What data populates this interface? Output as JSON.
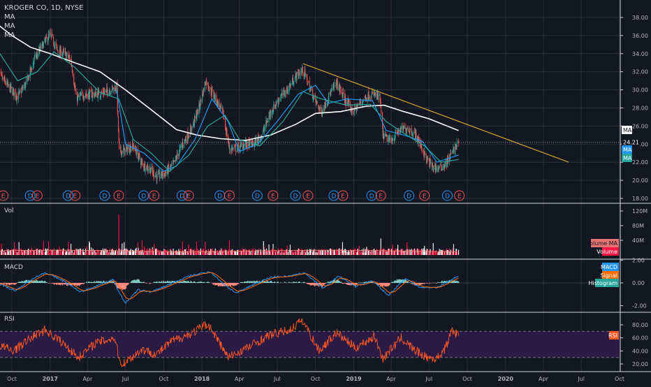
{
  "window": {
    "symbol": "KROGER CO, 1D, NYSE",
    "indicators": [
      "MA",
      "MA",
      "MA"
    ]
  },
  "colors": {
    "background": "#131722",
    "grid": "#2a2e39",
    "up_candle": "#26a69a",
    "down_candle": "#ef5350",
    "ma_white": "#ffffff",
    "ma_blue": "#2196f3",
    "ma_teal": "#26a69a",
    "trendline": "#c9a227",
    "volume_up": "#ffffff",
    "volume_down": "#ff1744",
    "macd": "#2196f3",
    "signal": "#ff6d00",
    "histogram_up": "#80cbc4",
    "histogram_down": "#ff8a80",
    "rsi": "#ff5722",
    "rsi_band": "#2a1a44",
    "earnings_red": "#ef5350",
    "dividend_blue": "#2196f3"
  },
  "chart_data": [
    {
      "type": "candlestick",
      "title": "KROGER CO, 1D, NYSE",
      "series_labels": [
        "MA",
        "MA",
        "MA"
      ],
      "x_tick_labels": [
        "Oct",
        "2017",
        "Apr",
        "Jul",
        "Oct",
        "2018",
        "Apr",
        "Jul",
        "Oct",
        "2019",
        "Apr",
        "Jul",
        "Oct",
        "2020",
        "Apr",
        "Jul",
        "Oct"
      ],
      "y_tick_labels": [
        "18.00",
        "20.00",
        "22.00",
        "24.00",
        "26.00",
        "28.00",
        "30.00",
        "32.00",
        "34.00",
        "36.00",
        "38.00"
      ],
      "ylim": [
        17.2,
        39.4
      ],
      "close_path": [
        [
          "2016-08-26",
          32.0
        ],
        [
          "2016-09-20",
          30.5
        ],
        [
          "2016-10-15",
          29.2
        ],
        [
          "2016-11-05",
          30.8
        ],
        [
          "2016-11-25",
          33.5
        ],
        [
          "2016-12-15",
          35.0
        ],
        [
          "2017-01-01",
          36.1
        ],
        [
          "2017-01-20",
          34.2
        ],
        [
          "2017-02-05",
          34.0
        ],
        [
          "2017-02-20",
          33.3
        ],
        [
          "2017-03-05",
          29.0
        ],
        [
          "2017-03-25",
          29.5
        ],
        [
          "2017-04-20",
          29.5
        ],
        [
          "2017-05-15",
          29.8
        ],
        [
          "2017-06-10",
          30.3
        ],
        [
          "2017-06-16",
          23.2
        ],
        [
          "2017-07-01",
          23.3
        ],
        [
          "2017-07-20",
          23.8
        ],
        [
          "2017-08-10",
          21.8
        ],
        [
          "2017-08-30",
          21.2
        ],
        [
          "2017-09-15",
          20.4
        ],
        [
          "2017-10-05",
          20.8
        ],
        [
          "2017-10-25",
          21.8
        ],
        [
          "2017-11-15",
          24.0
        ],
        [
          "2017-12-05",
          25.5
        ],
        [
          "2017-12-25",
          28.0
        ],
        [
          "2018-01-10",
          31.0
        ],
        [
          "2018-01-30",
          29.3
        ],
        [
          "2018-02-20",
          27.5
        ],
        [
          "2018-03-08",
          23.5
        ],
        [
          "2018-03-25",
          23.5
        ],
        [
          "2018-04-15",
          24.0
        ],
        [
          "2018-05-05",
          24.0
        ],
        [
          "2018-05-25",
          25.0
        ],
        [
          "2018-06-15",
          27.5
        ],
        [
          "2018-07-05",
          29.0
        ],
        [
          "2018-07-25",
          30.0
        ],
        [
          "2018-08-15",
          31.5
        ],
        [
          "2018-09-01",
          32.2
        ],
        [
          "2018-09-15",
          30.5
        ],
        [
          "2018-09-28",
          29.0
        ],
        [
          "2018-10-15",
          27.5
        ],
        [
          "2018-11-01",
          29.2
        ],
        [
          "2018-11-20",
          30.8
        ],
        [
          "2018-12-10",
          29.0
        ],
        [
          "2018-12-30",
          27.5
        ],
        [
          "2019-01-15",
          28.5
        ],
        [
          "2019-02-01",
          29.3
        ],
        [
          "2019-02-20",
          29.5
        ],
        [
          "2019-03-05",
          29.0
        ],
        [
          "2019-03-12",
          25.0
        ],
        [
          "2019-03-30",
          24.3
        ],
        [
          "2019-04-20",
          25.5
        ],
        [
          "2019-05-10",
          25.8
        ],
        [
          "2019-05-30",
          25.0
        ],
        [
          "2019-06-10",
          24.0
        ],
        [
          "2019-06-25",
          22.3
        ],
        [
          "2019-07-10",
          21.5
        ],
        [
          "2019-07-25",
          21.3
        ],
        [
          "2019-08-10",
          21.8
        ],
        [
          "2019-08-25",
          23.0
        ],
        [
          "2019-09-10",
          24.21
        ]
      ],
      "moving_averages": [
        {
          "name": "MA",
          "color": "#ffffff",
          "points": [
            [
              "2016-08-26",
              37.3
            ],
            [
              "2016-10-01",
              36.0
            ],
            [
              "2016-11-15",
              34.7
            ],
            [
              "2017-01-01",
              34.0
            ],
            [
              "2017-03-01",
              33.0
            ],
            [
              "2017-05-01",
              32.0
            ],
            [
              "2017-07-01",
              30.0
            ],
            [
              "2017-09-01",
              27.8
            ],
            [
              "2017-11-01",
              25.6
            ],
            [
              "2017-12-20",
              25.0
            ],
            [
              "2018-02-15",
              24.6
            ],
            [
              "2018-04-15",
              24.4
            ],
            [
              "2018-06-15",
              25.0
            ],
            [
              "2018-08-15",
              26.2
            ],
            [
              "2018-10-01",
              27.4
            ],
            [
              "2018-12-01",
              27.6
            ],
            [
              "2019-02-01",
              28.2
            ],
            [
              "2019-03-15",
              28.3
            ],
            [
              "2019-05-01",
              27.6
            ],
            [
              "2019-07-01",
              26.8
            ],
            [
              "2019-09-10",
              25.5
            ]
          ]
        },
        {
          "name": "MA",
          "color": "#2196f3",
          "points": [
            [
              "2017-06-10",
              30.0
            ],
            [
              "2017-07-01",
              24.0
            ],
            [
              "2017-08-15",
              23.0
            ],
            [
              "2017-10-01",
              21.0
            ],
            [
              "2017-11-01",
              21.6
            ],
            [
              "2017-12-15",
              24.5
            ],
            [
              "2018-01-25",
              29.0
            ],
            [
              "2018-03-05",
              26.5
            ],
            [
              "2018-04-01",
              23.2
            ],
            [
              "2018-05-15",
              24.0
            ],
            [
              "2018-07-01",
              26.5
            ],
            [
              "2018-08-20",
              29.5
            ],
            [
              "2018-10-01",
              30.5
            ],
            [
              "2018-11-01",
              28.5
            ],
            [
              "2018-12-15",
              29.0
            ],
            [
              "2019-02-15",
              28.8
            ],
            [
              "2019-03-20",
              25.5
            ],
            [
              "2019-05-01",
              25.0
            ],
            [
              "2019-06-15",
              24.3
            ],
            [
              "2019-07-20",
              22.0
            ],
            [
              "2019-09-10",
              22.8
            ]
          ]
        },
        {
          "name": "MA",
          "color": "#26a69a",
          "points": [
            [
              "2016-08-26",
              34.5
            ],
            [
              "2016-10-15",
              31.0
            ],
            [
              "2016-12-01",
              32.0
            ],
            [
              "2017-01-10",
              34.2
            ],
            [
              "2017-03-01",
              32.5
            ],
            [
              "2017-05-01",
              29.7
            ],
            [
              "2017-06-15",
              29.0
            ],
            [
              "2017-07-20",
              24.5
            ],
            [
              "2017-09-01",
              23.0
            ],
            [
              "2017-10-15",
              21.0
            ],
            [
              "2017-12-01",
              22.8
            ],
            [
              "2018-01-15",
              26.0
            ],
            [
              "2018-02-25",
              27.2
            ],
            [
              "2018-04-01",
              24.5
            ],
            [
              "2018-05-20",
              23.8
            ],
            [
              "2018-07-15",
              26.5
            ],
            [
              "2018-09-01",
              29.8
            ],
            [
              "2018-10-15",
              29.0
            ],
            [
              "2018-12-15",
              28.3
            ],
            [
              "2019-02-10",
              28.4
            ],
            [
              "2019-03-20",
              26.5
            ],
            [
              "2019-05-01",
              25.2
            ],
            [
              "2019-06-20",
              23.8
            ],
            [
              "2019-07-30",
              22.0
            ],
            [
              "2019-09-10",
              22.3
            ]
          ]
        }
      ],
      "trendline": {
        "start": [
          "2018-09-01",
          32.9
        ],
        "end": [
          "2020-06-01",
          22.0
        ]
      },
      "last_price": 24.21,
      "price_label": "24.21",
      "right_labels": [
        "MA",
        "MA",
        "MA"
      ],
      "events": [
        {
          "date": "2016-09-10",
          "kind": "E"
        },
        {
          "date": "2016-11-14",
          "kind": "D"
        },
        {
          "date": "2016-12-01",
          "kind": "E"
        },
        {
          "date": "2017-02-13",
          "kind": "D"
        },
        {
          "date": "2017-03-02",
          "kind": "E"
        },
        {
          "date": "2017-05-12",
          "kind": "D"
        },
        {
          "date": "2017-06-15",
          "kind": "E"
        },
        {
          "date": "2017-08-14",
          "kind": "D"
        },
        {
          "date": "2017-09-08",
          "kind": "E"
        },
        {
          "date": "2017-11-14",
          "kind": "D"
        },
        {
          "date": "2017-11-30",
          "kind": "E"
        },
        {
          "date": "2018-02-13",
          "kind": "D"
        },
        {
          "date": "2018-03-08",
          "kind": "E"
        },
        {
          "date": "2018-05-14",
          "kind": "D"
        },
        {
          "date": "2018-06-21",
          "kind": "E"
        },
        {
          "date": "2018-08-14",
          "kind": "D"
        },
        {
          "date": "2018-09-13",
          "kind": "E"
        },
        {
          "date": "2018-11-14",
          "kind": "D"
        },
        {
          "date": "2018-12-06",
          "kind": "E"
        },
        {
          "date": "2019-02-13",
          "kind": "D"
        },
        {
          "date": "2019-03-07",
          "kind": "E"
        },
        {
          "date": "2019-05-14",
          "kind": "D"
        },
        {
          "date": "2019-06-20",
          "kind": "E"
        },
        {
          "date": "2019-08-14",
          "kind": "D"
        },
        {
          "date": "2019-09-12",
          "kind": "E"
        }
      ]
    },
    {
      "type": "bar",
      "title": "Vol",
      "y_tick_labels": [
        "40M",
        "80M",
        "120M"
      ],
      "ylim": [
        0,
        125
      ],
      "volume_ma_label": "Volume MA",
      "volume_label": "Volume",
      "spikes": [
        [
          "2017-06-15",
          110
        ],
        [
          "2017-06-28",
          35
        ],
        [
          "2017-09-08",
          30
        ],
        [
          "2017-11-30",
          28
        ],
        [
          "2018-03-08",
          40
        ],
        [
          "2018-06-21",
          30
        ],
        [
          "2019-03-07",
          45
        ],
        [
          "2019-06-20",
          25
        ]
      ],
      "typical_range_m": [
        6,
        18
      ]
    },
    {
      "type": "line",
      "title": "MACD",
      "series": [
        {
          "name": "MACD"
        },
        {
          "name": "Signal"
        },
        {
          "name": "Histogram"
        }
      ],
      "y_tick_labels": [
        "2.00",
        "0.00",
        "-2.00"
      ],
      "ylim": [
        -2.7,
        2.0
      ],
      "macd_path": [
        [
          "2016-08-26",
          0.0
        ],
        [
          "2016-10-10",
          -0.7
        ],
        [
          "2016-11-20",
          0.4
        ],
        [
          "2016-12-20",
          0.9
        ],
        [
          "2017-02-01",
          0.2
        ],
        [
          "2017-03-15",
          -0.8
        ],
        [
          "2017-04-20",
          -0.3
        ],
        [
          "2017-06-01",
          0.3
        ],
        [
          "2017-06-30",
          -1.8
        ],
        [
          "2017-08-01",
          -0.6
        ],
        [
          "2017-09-01",
          -0.8
        ],
        [
          "2017-10-10",
          -0.2
        ],
        [
          "2017-12-01",
          0.6
        ],
        [
          "2018-01-20",
          1.0
        ],
        [
          "2018-03-01",
          -0.3
        ],
        [
          "2018-03-25",
          -0.9
        ],
        [
          "2018-05-01",
          -0.2
        ],
        [
          "2018-06-15",
          0.5
        ],
        [
          "2018-08-01",
          0.6
        ],
        [
          "2018-09-05",
          0.9
        ],
        [
          "2018-10-20",
          -0.5
        ],
        [
          "2018-11-25",
          0.6
        ],
        [
          "2019-01-05",
          -0.3
        ],
        [
          "2019-02-15",
          0.2
        ],
        [
          "2019-03-25",
          -1.1
        ],
        [
          "2019-05-05",
          0.4
        ],
        [
          "2019-06-10",
          -0.4
        ],
        [
          "2019-07-20",
          -0.4
        ],
        [
          "2019-09-10",
          0.6
        ]
      ]
    },
    {
      "type": "line",
      "title": "RSI",
      "series": [
        {
          "name": "RSI"
        }
      ],
      "y_tick_labels": [
        "20.00",
        "40.00",
        "60.00",
        "80.00"
      ],
      "ylim": [
        15,
        90
      ],
      "bands": [
        30,
        70
      ],
      "rsi_path": [
        [
          "2016-08-26",
          50
        ],
        [
          "2016-10-05",
          40
        ],
        [
          "2016-11-20",
          62
        ],
        [
          "2016-12-20",
          72
        ],
        [
          "2017-02-01",
          52
        ],
        [
          "2017-03-10",
          30
        ],
        [
          "2017-04-20",
          52
        ],
        [
          "2017-06-05",
          60
        ],
        [
          "2017-06-20",
          18
        ],
        [
          "2017-08-10",
          42
        ],
        [
          "2017-09-15",
          35
        ],
        [
          "2017-10-20",
          55
        ],
        [
          "2017-12-01",
          65
        ],
        [
          "2018-01-15",
          82
        ],
        [
          "2018-03-05",
          30
        ],
        [
          "2018-04-20",
          45
        ],
        [
          "2018-06-15",
          65
        ],
        [
          "2018-08-01",
          72
        ],
        [
          "2018-08-30",
          88
        ],
        [
          "2018-10-10",
          40
        ],
        [
          "2018-11-20",
          68
        ],
        [
          "2019-01-05",
          45
        ],
        [
          "2019-02-20",
          62
        ],
        [
          "2019-03-12",
          28
        ],
        [
          "2019-04-25",
          60
        ],
        [
          "2019-05-25",
          42
        ],
        [
          "2019-06-25",
          30
        ],
        [
          "2019-07-20",
          28
        ],
        [
          "2019-08-10",
          45
        ],
        [
          "2019-08-25",
          72
        ],
        [
          "2019-09-10",
          63
        ]
      ]
    }
  ]
}
